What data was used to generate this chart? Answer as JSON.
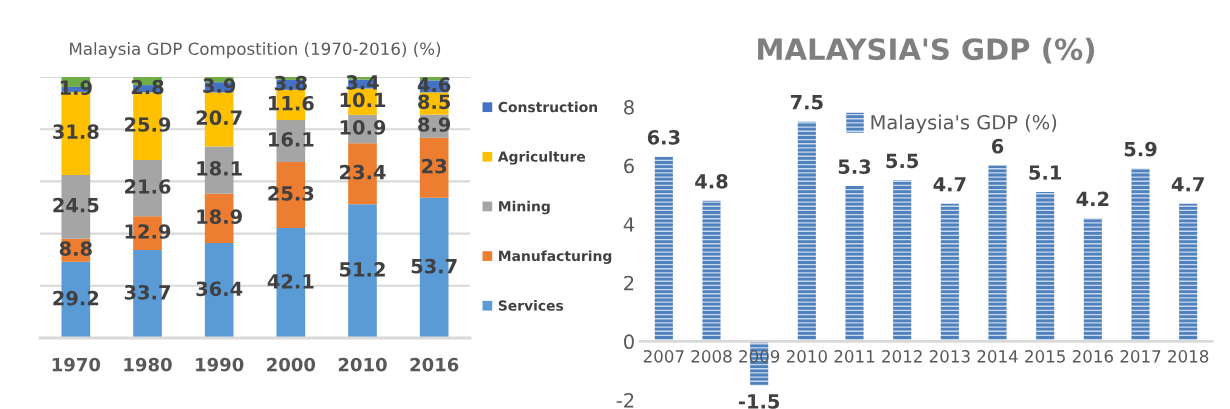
{
  "chart_data": [
    {
      "type": "bar",
      "title": "Malaysia GDP Compostition (1970-2016) (%)",
      "stacked": true,
      "categories": [
        "1970",
        "1980",
        "1990",
        "2000",
        "2010",
        "2016"
      ],
      "series": [
        {
          "name": "Services",
          "color": "#5b9bd5",
          "values": [
            29.2,
            33.7,
            36.4,
            42.1,
            51.2,
            53.7
          ],
          "value_labels": [
            "29.2",
            "33.7",
            "36.4",
            "42.1",
            "51.2",
            "53.7"
          ]
        },
        {
          "name": "Manufacturing",
          "color": "#ed7d31",
          "values": [
            8.8,
            12.9,
            18.9,
            25.3,
            23.4,
            23
          ],
          "value_labels": [
            "8.8",
            "12.9",
            "18.9",
            "25.3",
            "23.4",
            "23"
          ]
        },
        {
          "name": "Mining",
          "color": "#a5a5a5",
          "values": [
            24.5,
            21.6,
            18.1,
            16.1,
            10.9,
            8.9
          ],
          "value_labels": [
            "24.5",
            "21.6",
            "18.1",
            "16.1",
            "10.9",
            "8.9"
          ]
        },
        {
          "name": "Agriculture",
          "color": "#ffc000",
          "values": [
            31.8,
            25.9,
            20.7,
            11.6,
            10.1,
            8.5
          ],
          "value_labels": [
            "31.8",
            "25.9",
            "20.7",
            "11.6",
            "10.1",
            "8.5"
          ]
        },
        {
          "name": "Construction",
          "color": "#4472c4",
          "values": [
            1.9,
            2.8,
            3.9,
            3.8,
            3.4,
            4.6
          ],
          "value_labels": [
            "1.9",
            "2.8",
            "3.9",
            "3.8",
            "3.4",
            "4.6"
          ]
        },
        {
          "color": "#70ad47",
          "values": [
            3.8,
            3.1,
            2.0,
            1.1,
            1.0,
            1.3
          ]
        }
      ],
      "ylim": [
        0,
        100
      ],
      "yticks": [
        {
          "value": 0,
          "label": null
        },
        {
          "value": 20,
          "label": null
        },
        {
          "value": 40,
          "label": null
        },
        {
          "value": 60,
          "label": null
        },
        {
          "value": 80,
          "label": null
        },
        {
          "value": 100,
          "label": null
        }
      ],
      "tick_labels": "x",
      "grid": "y",
      "legend": "right"
    },
    {
      "type": "bar",
      "title": "MALAYSIA'S GDP (%)",
      "categories": [
        "2007",
        "2008",
        "2009",
        "2010",
        "2011",
        "2012",
        "2013",
        "2014",
        "2015",
        "2016",
        "2017",
        "2018"
      ],
      "series": [
        {
          "name": "Malaysia's GDP (%)",
          "color": "#4f81bd",
          "values": [
            6.3,
            4.8,
            -1.5,
            7.5,
            5.3,
            5.5,
            4.7,
            6,
            5.1,
            4.2,
            5.9,
            4.7
          ]
        }
      ],
      "ylim": [
        -2,
        8
      ],
      "yticks": [
        -2,
        0,
        2,
        4,
        6,
        8
      ],
      "data_labels": true,
      "legend": "top",
      "grid": false
    }
  ]
}
